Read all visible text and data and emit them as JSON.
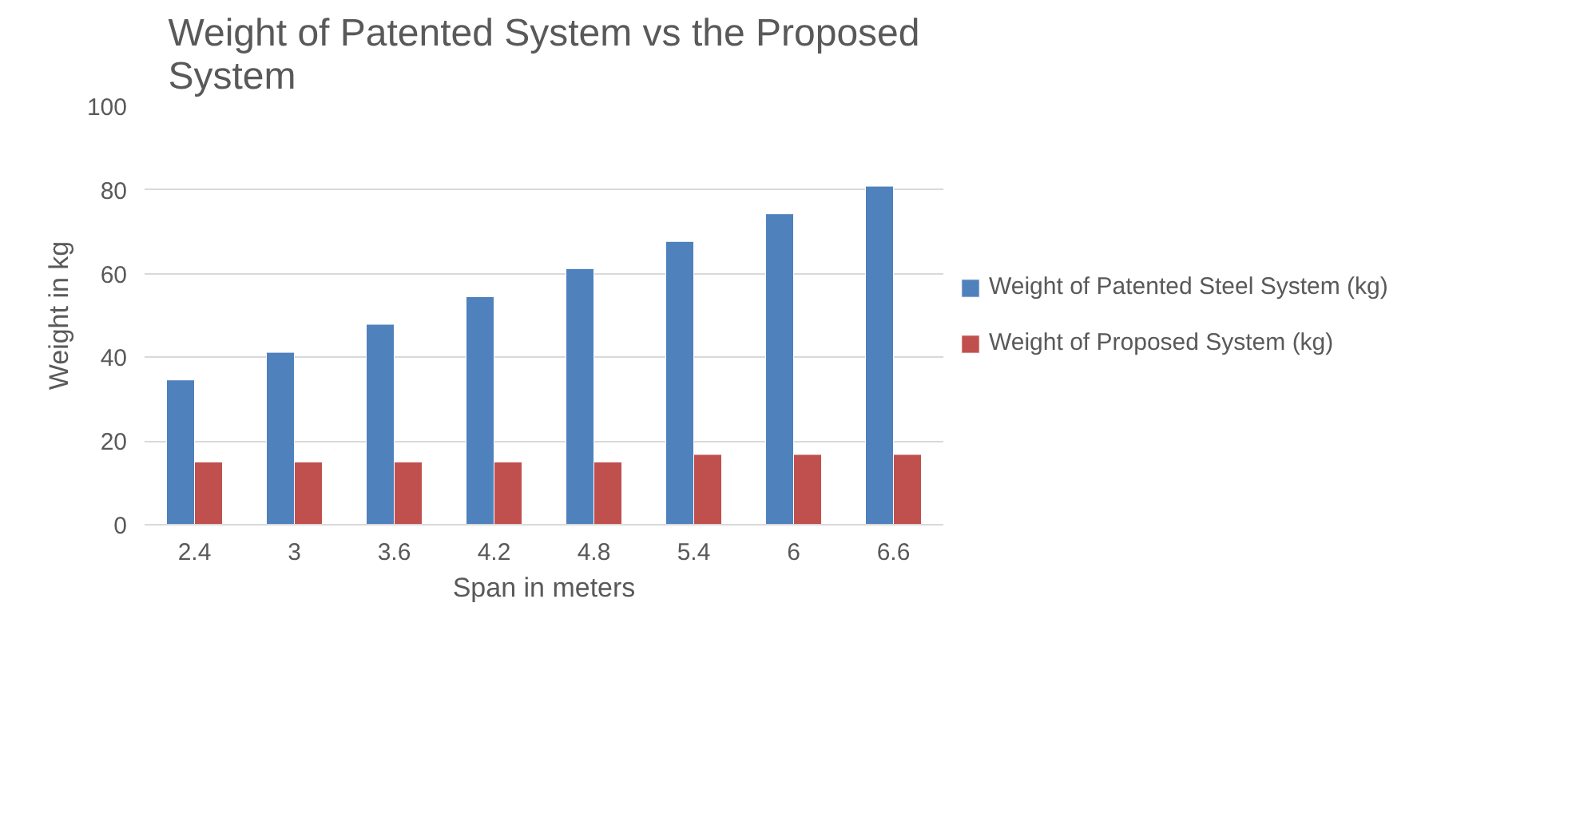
{
  "chart_data": {
    "type": "bar",
    "title": "Weight of Patented System vs the Proposed System",
    "xlabel": "Span in meters",
    "ylabel": "Weight in kg",
    "categories": [
      "2.4",
      "3",
      "3.6",
      "4.2",
      "4.8",
      "5.4",
      "6",
      "6.6"
    ],
    "series": [
      {
        "name": "Weight of Patented Steel System (kg)",
        "color": "#4f81bd",
        "values": [
          34.6,
          41.2,
          47.9,
          54.5,
          61.2,
          67.7,
          74.3,
          80.9
        ]
      },
      {
        "name": "Weight of Proposed System (kg)",
        "color": "#c0504d",
        "values": [
          15,
          15,
          15,
          15,
          15,
          16.8,
          16.8,
          16.8
        ]
      }
    ],
    "ylim": [
      0,
      100
    ],
    "yticks": [
      0,
      20,
      40,
      60,
      80,
      100
    ],
    "grid": "y",
    "legend": "right"
  }
}
